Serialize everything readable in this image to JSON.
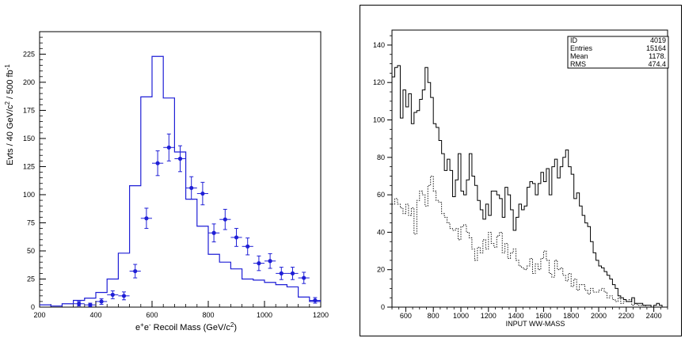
{
  "chart_data": [
    {
      "type": "histogram",
      "xlabel_parts": [
        "e",
        "+",
        "e",
        "-",
        " Recoil Mass (GeV/c",
        "2",
        ")"
      ],
      "ylabel_parts": [
        "Evts / 40 GeV/c",
        "2",
        " / 500 fb",
        "-1"
      ],
      "xlim": [
        200,
        1200
      ],
      "ylim": [
        0,
        245
      ],
      "x_ticks": [
        200,
        400,
        600,
        800,
        1000,
        1200
      ],
      "y_ticks": [
        0,
        25,
        50,
        75,
        100,
        125,
        150,
        175,
        200,
        225
      ],
      "grid": false,
      "line_color": "#1f1fd6",
      "marker_color": "#1f1fd6",
      "series": [
        {
          "style": "step",
          "bins": [
            {
              "x0": 200,
              "x1": 240,
              "y": 2
            },
            {
              "x0": 240,
              "x1": 280,
              "y": 1
            },
            {
              "x0": 280,
              "x1": 320,
              "y": 3
            },
            {
              "x0": 320,
              "x1": 360,
              "y": 6
            },
            {
              "x0": 360,
              "x1": 400,
              "y": 8
            },
            {
              "x0": 400,
              "x1": 440,
              "y": 13
            },
            {
              "x0": 440,
              "x1": 480,
              "y": 25
            },
            {
              "x0": 480,
              "x1": 520,
              "y": 48
            },
            {
              "x0": 520,
              "x1": 560,
              "y": 108
            },
            {
              "x0": 560,
              "x1": 600,
              "y": 187
            },
            {
              "x0": 600,
              "x1": 640,
              "y": 223
            },
            {
              "x0": 640,
              "x1": 680,
              "y": 186
            },
            {
              "x0": 680,
              "x1": 720,
              "y": 138
            },
            {
              "x0": 720,
              "x1": 760,
              "y": 96
            },
            {
              "x0": 760,
              "x1": 800,
              "y": 72
            },
            {
              "x0": 800,
              "x1": 840,
              "y": 47
            },
            {
              "x0": 840,
              "x1": 880,
              "y": 40
            },
            {
              "x0": 880,
              "x1": 920,
              "y": 34
            },
            {
              "x0": 920,
              "x1": 960,
              "y": 25
            },
            {
              "x0": 960,
              "x1": 1000,
              "y": 24
            },
            {
              "x0": 1000,
              "x1": 1040,
              "y": 22
            },
            {
              "x0": 1040,
              "x1": 1080,
              "y": 20
            },
            {
              "x0": 1080,
              "x1": 1120,
              "y": 18
            },
            {
              "x0": 1120,
              "x1": 1160,
              "y": 9
            },
            {
              "x0": 1160,
              "x1": 1200,
              "y": 5
            }
          ]
        },
        {
          "style": "points_with_errors",
          "x_half_width": 20,
          "points": [
            {
              "x": 340,
              "y": 3,
              "err": 2
            },
            {
              "x": 380,
              "y": 2,
              "err": 1.5
            },
            {
              "x": 420,
              "y": 5,
              "err": 2.5
            },
            {
              "x": 460,
              "y": 11,
              "err": 3.5
            },
            {
              "x": 500,
              "y": 10,
              "err": 3.5
            },
            {
              "x": 540,
              "y": 32,
              "err": 6
            },
            {
              "x": 580,
              "y": 79,
              "err": 9
            },
            {
              "x": 620,
              "y": 128,
              "err": 11
            },
            {
              "x": 660,
              "y": 142,
              "err": 12
            },
            {
              "x": 700,
              "y": 132,
              "err": 11.5
            },
            {
              "x": 740,
              "y": 106,
              "err": 10
            },
            {
              "x": 780,
              "y": 101,
              "err": 10
            },
            {
              "x": 820,
              "y": 66,
              "err": 8
            },
            {
              "x": 860,
              "y": 78,
              "err": 9
            },
            {
              "x": 900,
              "y": 62,
              "err": 8
            },
            {
              "x": 940,
              "y": 54,
              "err": 7.5
            },
            {
              "x": 980,
              "y": 39,
              "err": 6.5
            },
            {
              "x": 1020,
              "y": 41,
              "err": 6.5
            },
            {
              "x": 1060,
              "y": 30,
              "err": 5.5
            },
            {
              "x": 1100,
              "y": 30,
              "err": 5.5
            },
            {
              "x": 1140,
              "y": 26,
              "err": 5
            },
            {
              "x": 1180,
              "y": 6,
              "err": 2.5
            }
          ]
        }
      ]
    },
    {
      "type": "histogram",
      "xlabel": "INPUT WW-MASS",
      "xlim": [
        500,
        2500
      ],
      "ylim": [
        0,
        148
      ],
      "x_ticks": [
        600,
        800,
        1000,
        1200,
        1400,
        1600,
        1800,
        2000,
        2200,
        2400
      ],
      "y_ticks": [
        0,
        20,
        40,
        60,
        80,
        100,
        120,
        140
      ],
      "grid": false,
      "bin_start": 500,
      "bin_width": 20,
      "series": [
        {
          "style": "solid-step",
          "values": [
            123,
            128,
            129,
            101,
            116,
            107,
            114,
            98,
            104,
            105,
            111,
            116,
            128,
            120,
            112,
            98,
            96,
            89,
            82,
            73,
            79,
            73,
            59,
            68,
            82,
            62,
            60,
            68,
            82,
            70,
            65,
            57,
            52,
            47,
            55,
            49,
            62,
            62,
            60,
            58,
            48,
            64,
            60,
            52,
            41,
            48,
            55,
            52,
            54,
            64,
            67,
            66,
            60,
            66,
            72,
            67,
            74,
            60,
            75,
            79,
            69,
            75,
            80,
            84,
            75,
            71,
            58,
            61,
            54,
            49,
            45,
            43,
            35,
            29,
            25,
            22,
            21,
            19,
            17,
            15,
            12,
            10,
            6,
            5,
            4,
            3,
            3,
            5,
            2,
            2,
            2,
            1,
            1,
            1,
            0,
            1,
            2,
            1,
            0,
            0
          ]
        },
        {
          "style": "dotted-step",
          "values": [
            55,
            58,
            55,
            53,
            50,
            55,
            49,
            53,
            39,
            57,
            62,
            60,
            54,
            65,
            70,
            62,
            57,
            56,
            50,
            48,
            45,
            42,
            41,
            42,
            36,
            43,
            44,
            40,
            37,
            31,
            25,
            32,
            29,
            36,
            31,
            40,
            34,
            32,
            38,
            40,
            29,
            34,
            26,
            29,
            31,
            25,
            22,
            21,
            20,
            22,
            26,
            18,
            23,
            20,
            26,
            30,
            25,
            18,
            16,
            25,
            20,
            21,
            17,
            14,
            18,
            11,
            15,
            9,
            12,
            12,
            9,
            7,
            10,
            8,
            8,
            9,
            10,
            8,
            5,
            6,
            4,
            3,
            5,
            2,
            3,
            3,
            4,
            1,
            2,
            1,
            1,
            1,
            0,
            0,
            0,
            0,
            0,
            0,
            0,
            0
          ]
        }
      ],
      "stats_box": {
        "rows": [
          {
            "label": "ID",
            "value": "4019"
          },
          {
            "label": "Entries",
            "value": "15164"
          },
          {
            "label": "Mean",
            "value": "1178."
          },
          {
            "label": "RMS",
            "value": "474.4"
          }
        ]
      }
    }
  ]
}
